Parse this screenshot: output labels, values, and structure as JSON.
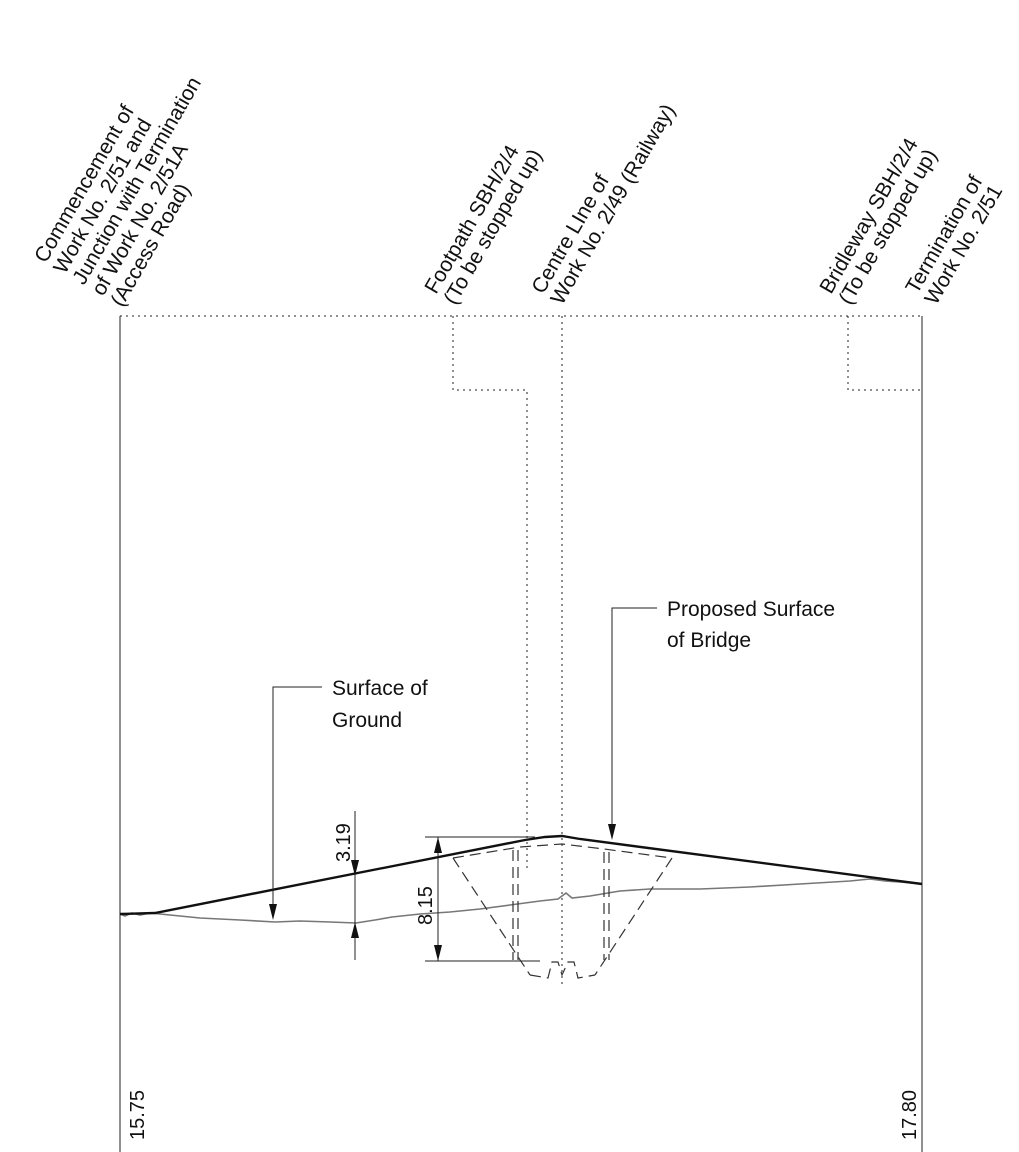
{
  "stations": [
    {
      "lines": [
        "Commencement of",
        "Work No. 2/51 and",
        "Junction with Termination",
        "of Work No. 2/51A",
        "(Access Road)"
      ]
    },
    {
      "lines": [
        "Footpath SBH/2/4",
        "(To be stopped up)"
      ]
    },
    {
      "lines": [
        "Centre LIne of",
        "Work No. 2/49 (Railway)"
      ]
    },
    {
      "lines": [
        "Bridleway SBH/2/4",
        "(To be stopped up)"
      ]
    },
    {
      "lines": [
        "Termination of",
        "Work No. 2/51"
      ]
    }
  ],
  "callouts": {
    "ground": [
      "Surface of",
      "Ground"
    ],
    "bridge": [
      "Proposed Surface",
      "of Bridge"
    ]
  },
  "dimensions": {
    "fill_height": "3.19",
    "bridge_depth": "8.15"
  },
  "chainage": {
    "start": "15.75",
    "end": "17.80"
  }
}
